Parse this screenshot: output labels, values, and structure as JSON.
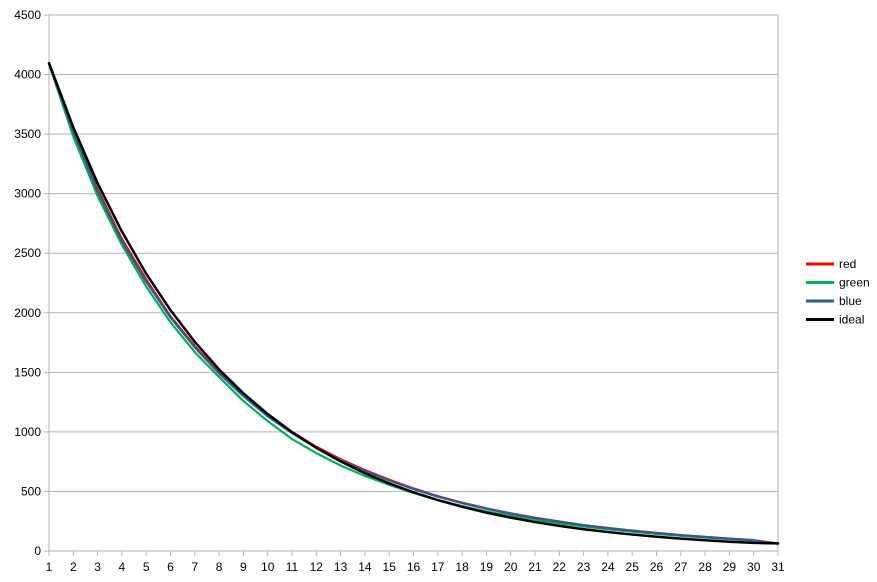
{
  "chart_data": {
    "type": "line",
    "title": "",
    "xlabel": "",
    "ylabel": "",
    "xlim": [
      1,
      31
    ],
    "ylim": [
      0,
      4500
    ],
    "y_ticks": [
      0,
      500,
      1000,
      1500,
      2000,
      2500,
      3000,
      3500,
      4000,
      4500
    ],
    "x": [
      1,
      2,
      3,
      4,
      5,
      6,
      7,
      8,
      9,
      10,
      11,
      12,
      13,
      14,
      15,
      16,
      17,
      18,
      19,
      20,
      21,
      22,
      23,
      24,
      25,
      26,
      27,
      28,
      29,
      30,
      31
    ],
    "grid": "horizontal",
    "legend_position": "right",
    "series": [
      {
        "name": "red",
        "color": "#ff0000",
        "values": [
          4090,
          3540,
          3040,
          2620,
          2280,
          1970,
          1720,
          1500,
          1310,
          1140,
          1000,
          875,
          770,
          680,
          598,
          525,
          460,
          406,
          358,
          316,
          280,
          248,
          218,
          193,
          171,
          152,
          134,
          119,
          104,
          91,
          62
        ]
      },
      {
        "name": "green",
        "color": "#00b050",
        "values": [
          4090,
          3480,
          2980,
          2570,
          2220,
          1920,
          1670,
          1460,
          1260,
          1090,
          940,
          822,
          718,
          630,
          555,
          487,
          428,
          377,
          333,
          295,
          262,
          232,
          205,
          182,
          162,
          144,
          128,
          113,
          100,
          88,
          62
        ]
      },
      {
        "name": "blue",
        "color": "#2e5c93",
        "values": [
          4090,
          3520,
          3020,
          2600,
          2260,
          1960,
          1710,
          1490,
          1300,
          1130,
          990,
          866,
          762,
          672,
          592,
          520,
          456,
          402,
          355,
          313,
          277,
          245,
          216,
          191,
          170,
          150,
          133,
          118,
          103,
          90,
          62
        ]
      },
      {
        "name": "ideal",
        "color": "#000000",
        "values": [
          4096,
          3557,
          3088,
          2682,
          2328,
          2022,
          1756,
          1524,
          1324,
          1150,
          998,
          866,
          752,
          653,
          567,
          493,
          428,
          371,
          322,
          280,
          243,
          211,
          183,
          159,
          138,
          120,
          104,
          90,
          78,
          68,
          64
        ]
      }
    ]
  }
}
